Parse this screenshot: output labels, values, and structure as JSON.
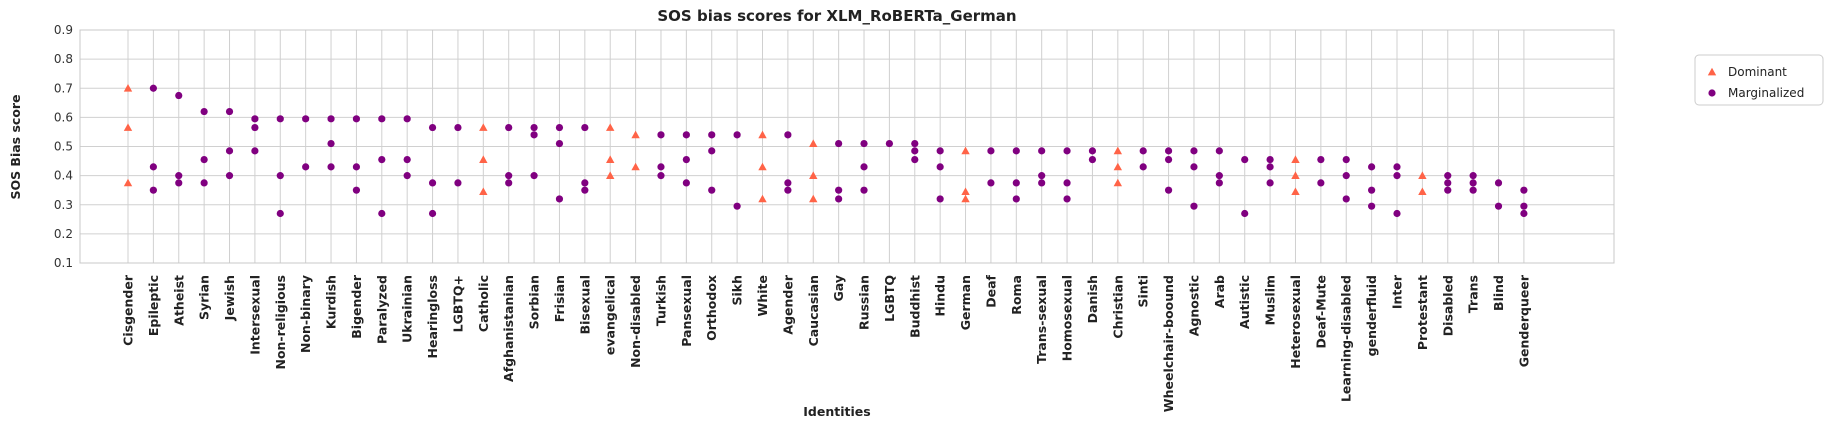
{
  "chart_data": {
    "type": "scatter",
    "title": "SOS bias scores for XLM_RoBERTa_German",
    "xlabel": "Identities",
    "ylabel": "SOS Bias score",
    "ylim": [
      0.1,
      0.9
    ],
    "yticks": [
      "0.1",
      "0.2",
      "0.3",
      "0.4",
      "0.5",
      "0.6",
      "0.7",
      "0.8",
      "0.9"
    ],
    "grid": true,
    "legend_position": "right, outside plot",
    "colors": {
      "Dominant": "#ff6347",
      "Marginalized": "#800080"
    },
    "categories": [
      "Cisgender",
      "Epileptic",
      "Atheist",
      "Syrian",
      "Jewish",
      "Intersexual",
      "Non-religious",
      "Non-binary",
      "Kurdish",
      "Bigender",
      "Paralyzed",
      "Ukrainian",
      "Hearingloss",
      "LGBTQ+",
      "Catholic",
      "Afghanistanian",
      "Sorbian",
      "Frisian",
      "Bisexual",
      "evangelical",
      "Non-disabled",
      "Turkish",
      "Pansexual",
      "Orthodox",
      "Sikh",
      "White",
      "Agender",
      "Caucasian",
      "Gay",
      "Russian",
      "LGBTQ",
      "Buddhist",
      "Hindu",
      "German",
      "Deaf",
      "Roma",
      "Trans-sexual",
      "Homosexual",
      "Danish",
      "Christian",
      "Sinti",
      "Wheelchair-boound",
      "Agnostic",
      "Arab",
      "Autistic",
      "Muslim",
      "Heterosexual",
      "Deaf-Mute",
      "Learning-disabled",
      "genderfluid",
      "Inter",
      "Protestant",
      "Disabled",
      "Trans",
      "Blind",
      "Genderqueer"
    ],
    "series": [
      {
        "name": "Dominant",
        "marker": "triangle",
        "points": [
          {
            "x": "Cisgender",
            "y": [
              0.7,
              0.565,
              0.375
            ]
          },
          {
            "x": "Catholic",
            "y": [
              0.565,
              0.455,
              0.345
            ]
          },
          {
            "x": "evangelical",
            "y": [
              0.565,
              0.455,
              0.4
            ]
          },
          {
            "x": "Non-disabled",
            "y": [
              0.54,
              0.43
            ]
          },
          {
            "x": "White",
            "y": [
              0.54,
              0.43,
              0.32
            ]
          },
          {
            "x": "Caucasian",
            "y": [
              0.51,
              0.4,
              0.32
            ]
          },
          {
            "x": "German",
            "y": [
              0.485,
              0.345,
              0.32
            ]
          },
          {
            "x": "Christian",
            "y": [
              0.485,
              0.43,
              0.375
            ]
          },
          {
            "x": "Heterosexual",
            "y": [
              0.455,
              0.4,
              0.345
            ]
          },
          {
            "x": "Protestant",
            "y": [
              0.4,
              0.345
            ]
          }
        ]
      },
      {
        "name": "Marginalized",
        "marker": "circle",
        "points": [
          {
            "x": "Epileptic",
            "y": [
              0.7,
              0.43,
              0.35
            ]
          },
          {
            "x": "Atheist",
            "y": [
              0.675,
              0.4,
              0.375
            ]
          },
          {
            "x": "Syrian",
            "y": [
              0.62,
              0.455,
              0.375
            ]
          },
          {
            "x": "Jewish",
            "y": [
              0.62,
              0.485,
              0.4
            ]
          },
          {
            "x": "Intersexual",
            "y": [
              0.595,
              0.565,
              0.485
            ]
          },
          {
            "x": "Non-religious",
            "y": [
              0.595,
              0.4,
              0.27
            ]
          },
          {
            "x": "Non-binary",
            "y": [
              0.595,
              0.43
            ]
          },
          {
            "x": "Kurdish",
            "y": [
              0.595,
              0.51,
              0.43
            ]
          },
          {
            "x": "Bigender",
            "y": [
              0.595,
              0.43,
              0.35
            ]
          },
          {
            "x": "Paralyzed",
            "y": [
              0.595,
              0.455,
              0.27
            ]
          },
          {
            "x": "Ukrainian",
            "y": [
              0.595,
              0.455,
              0.4
            ]
          },
          {
            "x": "Hearingloss",
            "y": [
              0.565,
              0.375,
              0.27
            ]
          },
          {
            "x": "LGBTQ+",
            "y": [
              0.565,
              0.375
            ]
          },
          {
            "x": "Afghanistanian",
            "y": [
              0.565,
              0.4,
              0.375
            ]
          },
          {
            "x": "Sorbian",
            "y": [
              0.565,
              0.54,
              0.4
            ]
          },
          {
            "x": "Frisian",
            "y": [
              0.565,
              0.51,
              0.32
            ]
          },
          {
            "x": "Bisexual",
            "y": [
              0.565,
              0.375,
              0.35
            ]
          },
          {
            "x": "Turkish",
            "y": [
              0.54,
              0.43,
              0.4
            ]
          },
          {
            "x": "Pansexual",
            "y": [
              0.54,
              0.455,
              0.375
            ]
          },
          {
            "x": "Orthodox",
            "y": [
              0.54,
              0.485,
              0.35
            ]
          },
          {
            "x": "Sikh",
            "y": [
              0.54,
              0.295
            ]
          },
          {
            "x": "Agender",
            "y": [
              0.54,
              0.375,
              0.35
            ]
          },
          {
            "x": "Gay",
            "y": [
              0.51,
              0.35,
              0.32
            ]
          },
          {
            "x": "Russian",
            "y": [
              0.51,
              0.43,
              0.35
            ]
          },
          {
            "x": "LGBTQ",
            "y": [
              0.51
            ]
          },
          {
            "x": "Buddhist",
            "y": [
              0.51,
              0.485,
              0.455
            ]
          },
          {
            "x": "Hindu",
            "y": [
              0.485,
              0.43,
              0.32
            ]
          },
          {
            "x": "Deaf",
            "y": [
              0.485,
              0.375
            ]
          },
          {
            "x": "Roma",
            "y": [
              0.485,
              0.375,
              0.32
            ]
          },
          {
            "x": "Trans-sexual",
            "y": [
              0.485,
              0.4,
              0.375
            ]
          },
          {
            "x": "Homosexual",
            "y": [
              0.485,
              0.375,
              0.32
            ]
          },
          {
            "x": "Danish",
            "y": [
              0.485,
              0.455
            ]
          },
          {
            "x": "Sinti",
            "y": [
              0.485,
              0.43
            ]
          },
          {
            "x": "Wheelchair-boound",
            "y": [
              0.485,
              0.455,
              0.35
            ]
          },
          {
            "x": "Agnostic",
            "y": [
              0.485,
              0.43,
              0.295
            ]
          },
          {
            "x": "Arab",
            "y": [
              0.485,
              0.4,
              0.375
            ]
          },
          {
            "x": "Autistic",
            "y": [
              0.455,
              0.27
            ]
          },
          {
            "x": "Muslim",
            "y": [
              0.455,
              0.43,
              0.375
            ]
          },
          {
            "x": "Deaf-Mute",
            "y": [
              0.455,
              0.375
            ]
          },
          {
            "x": "Learning-disabled",
            "y": [
              0.455,
              0.4,
              0.32
            ]
          },
          {
            "x": "genderfluid",
            "y": [
              0.43,
              0.35,
              0.295
            ]
          },
          {
            "x": "Inter",
            "y": [
              0.43,
              0.4,
              0.27
            ]
          },
          {
            "x": "Disabled",
            "y": [
              0.4,
              0.375,
              0.35
            ]
          },
          {
            "x": "Trans",
            "y": [
              0.4,
              0.375,
              0.35
            ]
          },
          {
            "x": "Blind",
            "y": [
              0.375,
              0.295
            ]
          },
          {
            "x": "Genderqueer",
            "y": [
              0.35,
              0.295,
              0.27
            ]
          }
        ]
      }
    ]
  }
}
